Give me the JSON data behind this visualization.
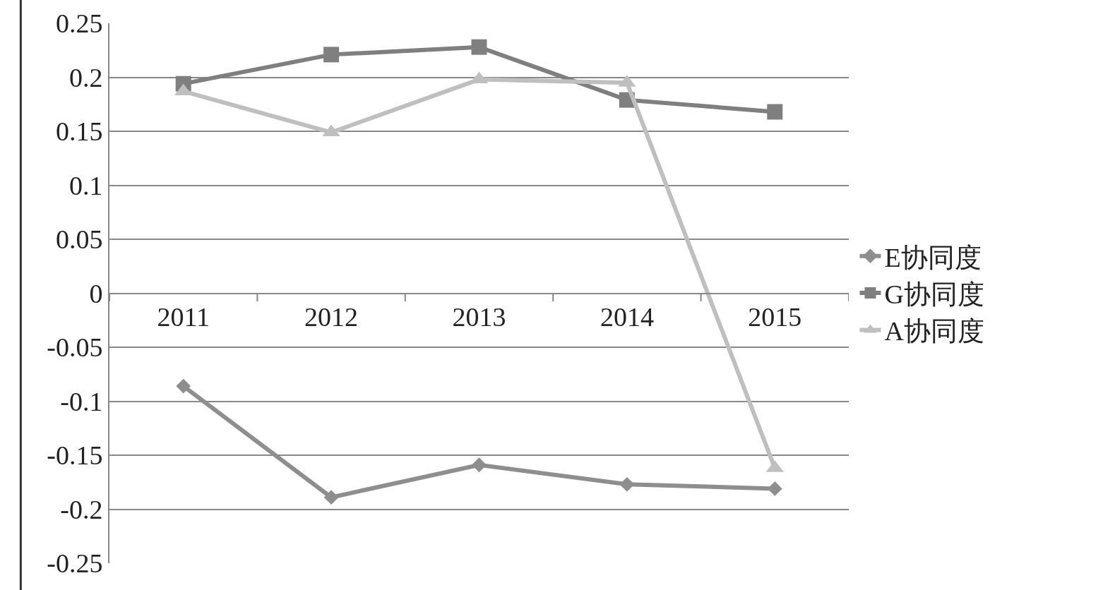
{
  "chart_data": {
    "type": "line",
    "categories": [
      "2011",
      "2012",
      "2013",
      "2014",
      "2015"
    ],
    "series": [
      {
        "name": "E协同度",
        "color": "#8e8e8e",
        "marker": "diamond",
        "values": [
          -0.086,
          -0.189,
          -0.159,
          -0.177,
          -0.181
        ]
      },
      {
        "name": "G协同度",
        "color": "#7f7f7f",
        "marker": "square",
        "values": [
          0.194,
          0.221,
          0.228,
          0.179,
          0.168
        ]
      },
      {
        "name": "A协同度",
        "color": "#bfbfbf",
        "marker": "triangle",
        "values": [
          0.187,
          0.149,
          0.198,
          0.195,
          -0.162
        ]
      }
    ],
    "ylim": [
      -0.25,
      0.25
    ],
    "yticks": [
      {
        "value": -0.25,
        "label": "-0.25"
      },
      {
        "value": -0.2,
        "label": "-0.2"
      },
      {
        "value": -0.15,
        "label": "-0.15"
      },
      {
        "value": -0.1,
        "label": "-0.1"
      },
      {
        "value": -0.05,
        "label": "-0.05"
      },
      {
        "value": 0,
        "label": "0"
      },
      {
        "value": 0.05,
        "label": "0.05"
      },
      {
        "value": 0.1,
        "label": "0.1"
      },
      {
        "value": 0.15,
        "label": "0.15"
      },
      {
        "value": 0.2,
        "label": "0.2"
      },
      {
        "value": 0.25,
        "label": "0.25"
      }
    ],
    "grid": "y",
    "legend": "right",
    "line_style": "solid"
  }
}
